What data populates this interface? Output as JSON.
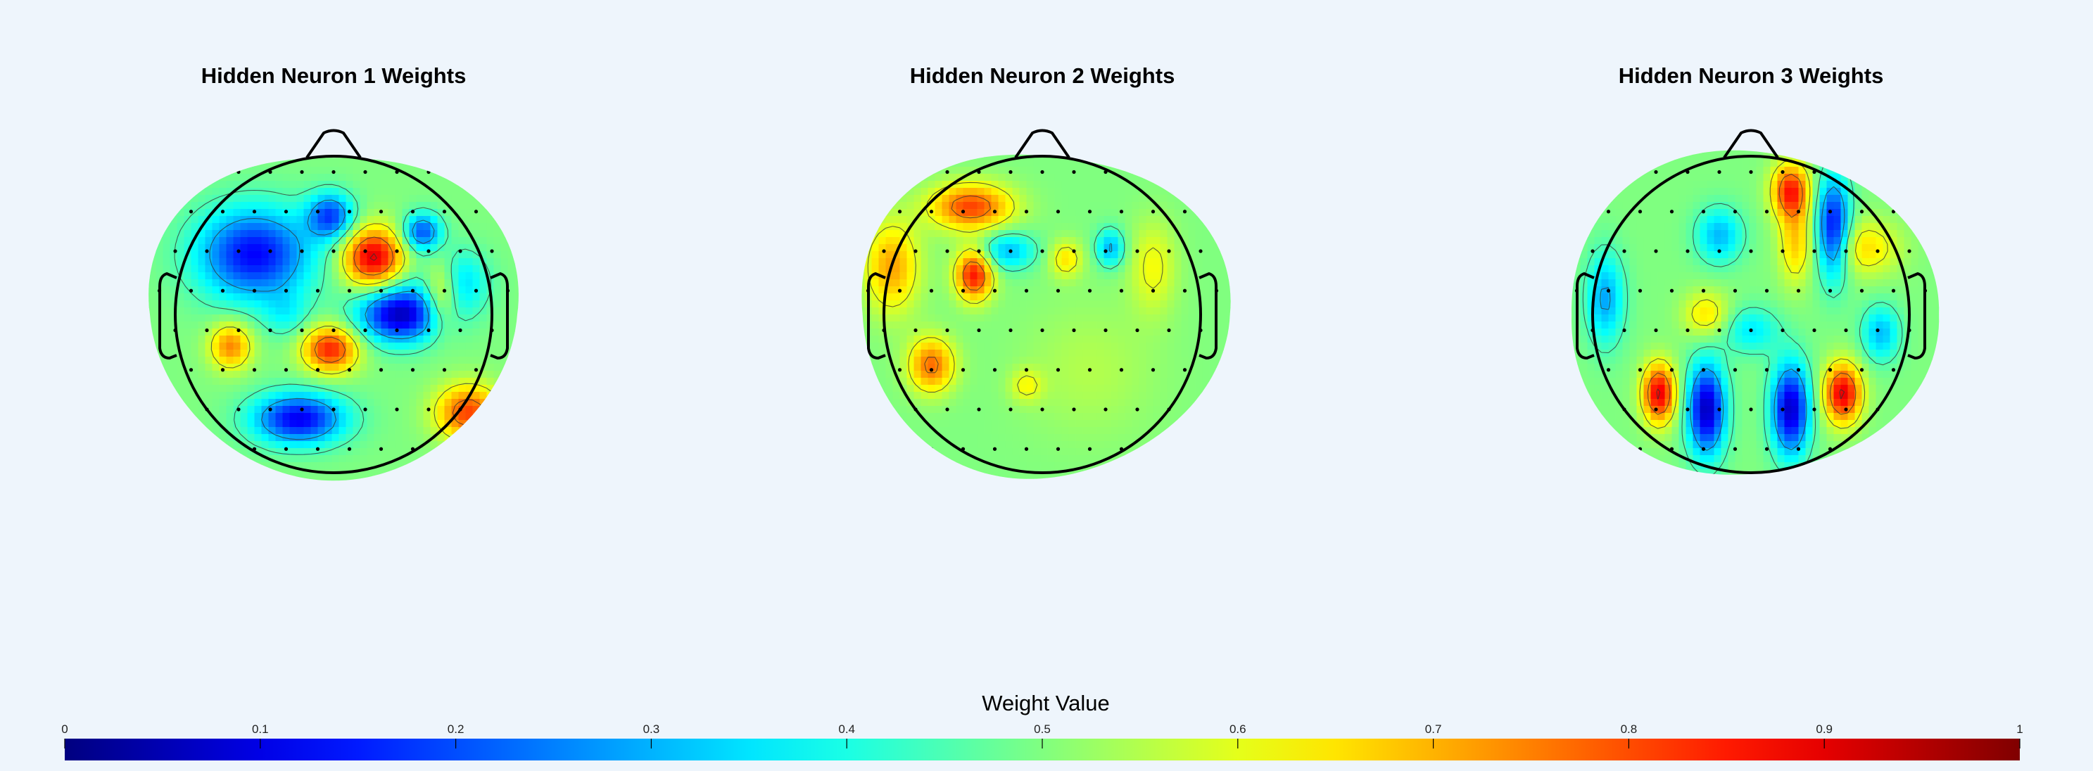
{
  "chart_data": {
    "type": "heatmap",
    "subtype": "eeg-topographic-map",
    "panels": [
      {
        "title": "Hidden Neuron 1 Weights",
        "hotspots": [
          {
            "x": -0.5,
            "y": 0.38,
            "sx": 0.25,
            "sy": 0.2,
            "value": 0.12
          },
          {
            "x": 0.25,
            "y": 0.36,
            "sx": 0.13,
            "sy": 0.13,
            "value": 0.92
          },
          {
            "x": -0.02,
            "y": 0.62,
            "sx": 0.1,
            "sy": 0.1,
            "value": 0.18
          },
          {
            "x": 0.56,
            "y": 0.52,
            "sx": 0.08,
            "sy": 0.08,
            "value": 0.18
          },
          {
            "x": 0.75,
            "y": 0.2,
            "sx": 0.14,
            "sy": 0.14,
            "value": 0.28
          },
          {
            "x": 0.42,
            "y": 0.0,
            "sx": 0.18,
            "sy": 0.12,
            "value": 0.05
          },
          {
            "x": 0.68,
            "y": 0.14,
            "sx": 0.08,
            "sy": 0.15,
            "value": 0.8
          },
          {
            "x": -0.02,
            "y": -0.22,
            "sx": 0.12,
            "sy": 0.1,
            "value": 0.86
          },
          {
            "x": -0.65,
            "y": -0.2,
            "sx": 0.09,
            "sy": 0.1,
            "value": 0.76
          },
          {
            "x": -0.22,
            "y": -0.66,
            "sx": 0.2,
            "sy": 0.11,
            "value": 0.1
          },
          {
            "x": 0.85,
            "y": -0.62,
            "sx": 0.14,
            "sy": 0.12,
            "value": 0.82
          },
          {
            "x": -0.3,
            "y": 0.0,
            "sx": 0.1,
            "sy": 0.1,
            "value": 0.4
          }
        ]
      },
      {
        "title": "Hidden Neuron 2 Weights",
        "hotspots": [
          {
            "x": -0.45,
            "y": 0.68,
            "sx": 0.18,
            "sy": 0.1,
            "value": 0.82
          },
          {
            "x": -0.22,
            "y": 0.4,
            "sx": 0.12,
            "sy": 0.08,
            "value": 0.3
          },
          {
            "x": -0.43,
            "y": 0.25,
            "sx": 0.08,
            "sy": 0.11,
            "value": 0.88
          },
          {
            "x": -0.95,
            "y": 0.3,
            "sx": 0.12,
            "sy": 0.2,
            "value": 0.72
          },
          {
            "x": 0.43,
            "y": 0.42,
            "sx": 0.06,
            "sy": 0.08,
            "value": 0.28
          },
          {
            "x": 0.15,
            "y": 0.35,
            "sx": 0.07,
            "sy": 0.08,
            "value": 0.66
          },
          {
            "x": 0.7,
            "y": 0.3,
            "sx": 0.1,
            "sy": 0.2,
            "value": 0.62
          },
          {
            "x": -0.7,
            "y": -0.32,
            "sx": 0.1,
            "sy": 0.12,
            "value": 0.78
          },
          {
            "x": -0.1,
            "y": -0.45,
            "sx": 0.07,
            "sy": 0.07,
            "value": 0.62
          },
          {
            "x": 0.3,
            "y": -0.35,
            "sx": 0.3,
            "sy": 0.3,
            "value": 0.55
          }
        ]
      },
      {
        "title": "Hidden Neuron 3 Weights",
        "hotspots": [
          {
            "x": 0.25,
            "y": 0.78,
            "sx": 0.08,
            "sy": 0.12,
            "value": 0.86
          },
          {
            "x": 0.52,
            "y": 0.55,
            "sx": 0.07,
            "sy": 0.22,
            "value": 0.1
          },
          {
            "x": 0.28,
            "y": 0.45,
            "sx": 0.07,
            "sy": 0.18,
            "value": 0.68
          },
          {
            "x": -0.2,
            "y": 0.5,
            "sx": 0.1,
            "sy": 0.12,
            "value": 0.3
          },
          {
            "x": -0.58,
            "y": -0.5,
            "sx": 0.07,
            "sy": 0.13,
            "value": 0.92
          },
          {
            "x": -0.28,
            "y": -0.6,
            "sx": 0.08,
            "sy": 0.2,
            "value": 0.04
          },
          {
            "x": 0.25,
            "y": -0.6,
            "sx": 0.08,
            "sy": 0.2,
            "value": 0.05
          },
          {
            "x": 0.58,
            "y": -0.5,
            "sx": 0.08,
            "sy": 0.13,
            "value": 0.92
          },
          {
            "x": -0.92,
            "y": 0.1,
            "sx": 0.08,
            "sy": 0.2,
            "value": 0.28
          },
          {
            "x": 0.82,
            "y": -0.12,
            "sx": 0.08,
            "sy": 0.12,
            "value": 0.3
          },
          {
            "x": -0.28,
            "y": 0.0,
            "sx": 0.1,
            "sy": 0.1,
            "value": 0.66
          },
          {
            "x": 0.72,
            "y": 0.42,
            "sx": 0.15,
            "sy": 0.12,
            "value": 0.66
          },
          {
            "x": 0.0,
            "y": -0.1,
            "sx": 0.12,
            "sy": 0.1,
            "value": 0.35
          }
        ]
      }
    ],
    "electrode_grid": {
      "x_step": 0.2,
      "y_step": 0.25,
      "radius": 1.0
    },
    "colorbar": {
      "label": "Weight Value",
      "range": [
        0,
        1
      ],
      "ticks": [
        "0",
        "0.1",
        "0.2",
        "0.3",
        "0.4",
        "0.5",
        "0.6",
        "0.7",
        "0.8",
        "0.9",
        "1"
      ],
      "colormap": "jet",
      "placement": "bottom"
    },
    "contour_levels": [
      0.3,
      0.45,
      0.6,
      0.75,
      0.9
    ]
  }
}
